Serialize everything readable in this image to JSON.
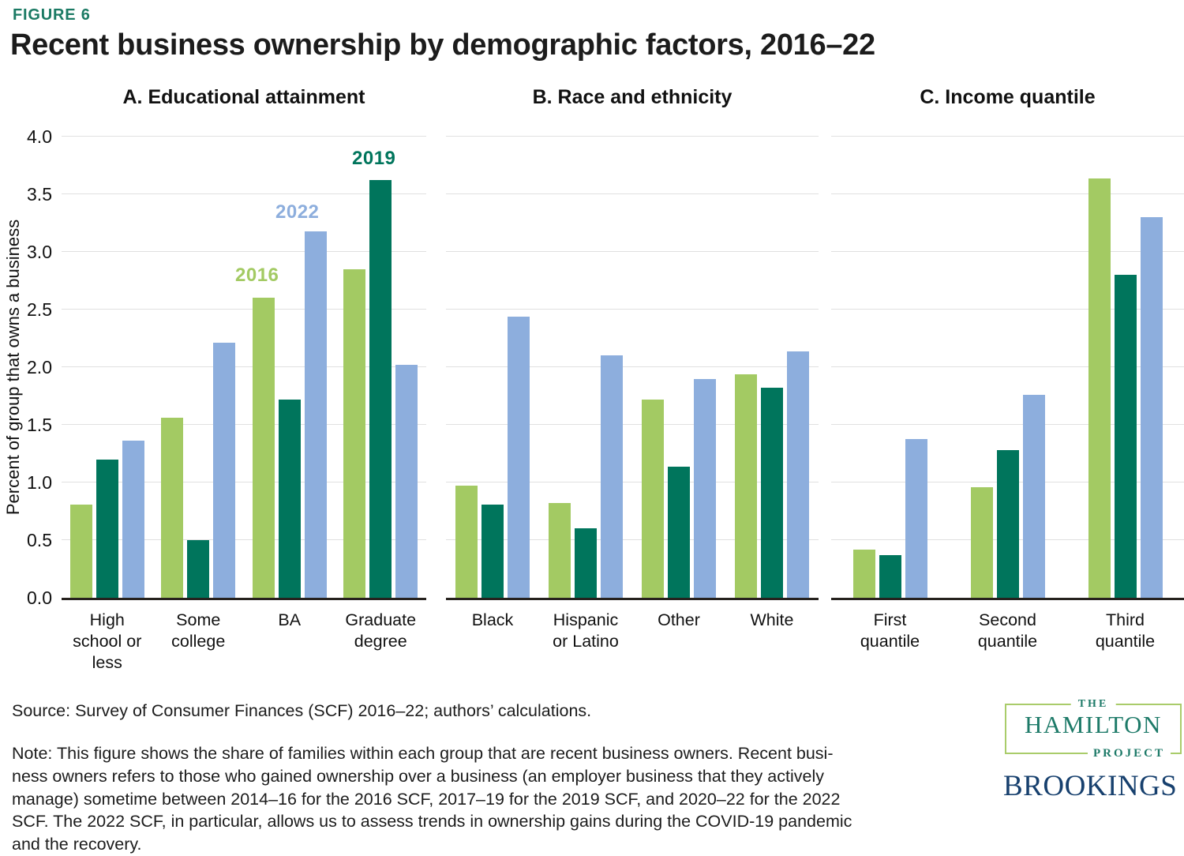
{
  "header": {
    "figure_label": "FIGURE 6",
    "title": "Recent business ownership by demographic factors, 2016–22"
  },
  "colors": {
    "accent_teal": "#1b7a64",
    "series_2016_green": "#a3ca63",
    "series_2019_teal": "#00755c",
    "series_2022_blue": "#8daedd",
    "gridline": "#e0e0e0",
    "baseline": "#26221e",
    "hamilton_green": "#1d7a68",
    "hamilton_border": "#a9cc6a",
    "brookings_navy": "#17406e"
  },
  "chart_shared": {
    "y_axis_label": "Percent of group that owns a business",
    "y_ticks": [
      "0.0",
      "0.5",
      "1.0",
      "1.5",
      "2.0",
      "2.5",
      "3.0",
      "3.5",
      "4.0"
    ],
    "ylim": [
      0,
      4
    ],
    "grid": true,
    "legend_position": "inline labels above BA and Graduate-degree bars in panel A"
  },
  "chart_data": [
    {
      "type": "bar",
      "id": "educational-attainment",
      "title": "A. Educational attainment",
      "categories": [
        "High school or less",
        "Some college",
        "BA",
        "Graduate degree"
      ],
      "series": [
        {
          "name": "2016",
          "color": "#a3ca63",
          "values": [
            0.81,
            1.56,
            2.6,
            2.85
          ]
        },
        {
          "name": "2019",
          "color": "#00755c",
          "values": [
            1.2,
            0.5,
            1.72,
            3.62
          ]
        },
        {
          "name": "2022",
          "color": "#8daedd",
          "values": [
            1.36,
            2.21,
            3.18,
            2.02
          ]
        }
      ],
      "ylim": [
        0,
        4
      ],
      "annotations": [
        {
          "text": "2016",
          "color": "#a3ca63"
        },
        {
          "text": "2022",
          "color": "#8daedd"
        },
        {
          "text": "2019",
          "color": "#00755c"
        }
      ]
    },
    {
      "type": "bar",
      "id": "race-and-ethnicity",
      "title": "B. Race and ethnicity",
      "categories": [
        "Black",
        "Hispanic or Latino",
        "Other",
        "White"
      ],
      "series": [
        {
          "name": "2016",
          "color": "#a3ca63",
          "values": [
            0.97,
            0.82,
            1.72,
            1.94
          ]
        },
        {
          "name": "2019",
          "color": "#00755c",
          "values": [
            0.81,
            0.6,
            1.14,
            1.82
          ]
        },
        {
          "name": "2022",
          "color": "#8daedd",
          "values": [
            2.44,
            2.1,
            1.9,
            2.14
          ]
        }
      ],
      "ylim": [
        0,
        4
      ]
    },
    {
      "type": "bar",
      "id": "income-quantile",
      "title": "C. Income quantile",
      "categories": [
        "First quantile",
        "Second quantile",
        "Third quantile"
      ],
      "series": [
        {
          "name": "2016",
          "color": "#a3ca63",
          "values": [
            0.42,
            0.96,
            3.64
          ]
        },
        {
          "name": "2019",
          "color": "#00755c",
          "values": [
            0.37,
            1.28,
            2.8
          ]
        },
        {
          "name": "2022",
          "color": "#8daedd",
          "values": [
            1.38,
            1.76,
            3.3
          ]
        }
      ],
      "ylim": [
        0,
        4
      ]
    }
  ],
  "footer": {
    "source": "Source: Survey of Consumer Finances (SCF) 2016–22; authors’ calculations.",
    "note_lines": [
      "Note: This figure shows the share of families within each group that are recent business owners. Recent busi-",
      "ness owners refers to those who gained ownership over a business (an employer business that they actively",
      "manage) sometime between 2014–16 for the 2016 SCF, 2017–19 for the 2019 SCF, and 2020–22 for the 2022",
      "SCF. The 2022 SCF, in particular, allows us to assess trends in ownership gains during the COVID-19 pandemic",
      "and the recovery."
    ]
  },
  "logos": {
    "hamilton": {
      "the": "THE",
      "name": "HAMILTON",
      "project": "PROJECT"
    },
    "brookings": "BROOKINGS"
  }
}
